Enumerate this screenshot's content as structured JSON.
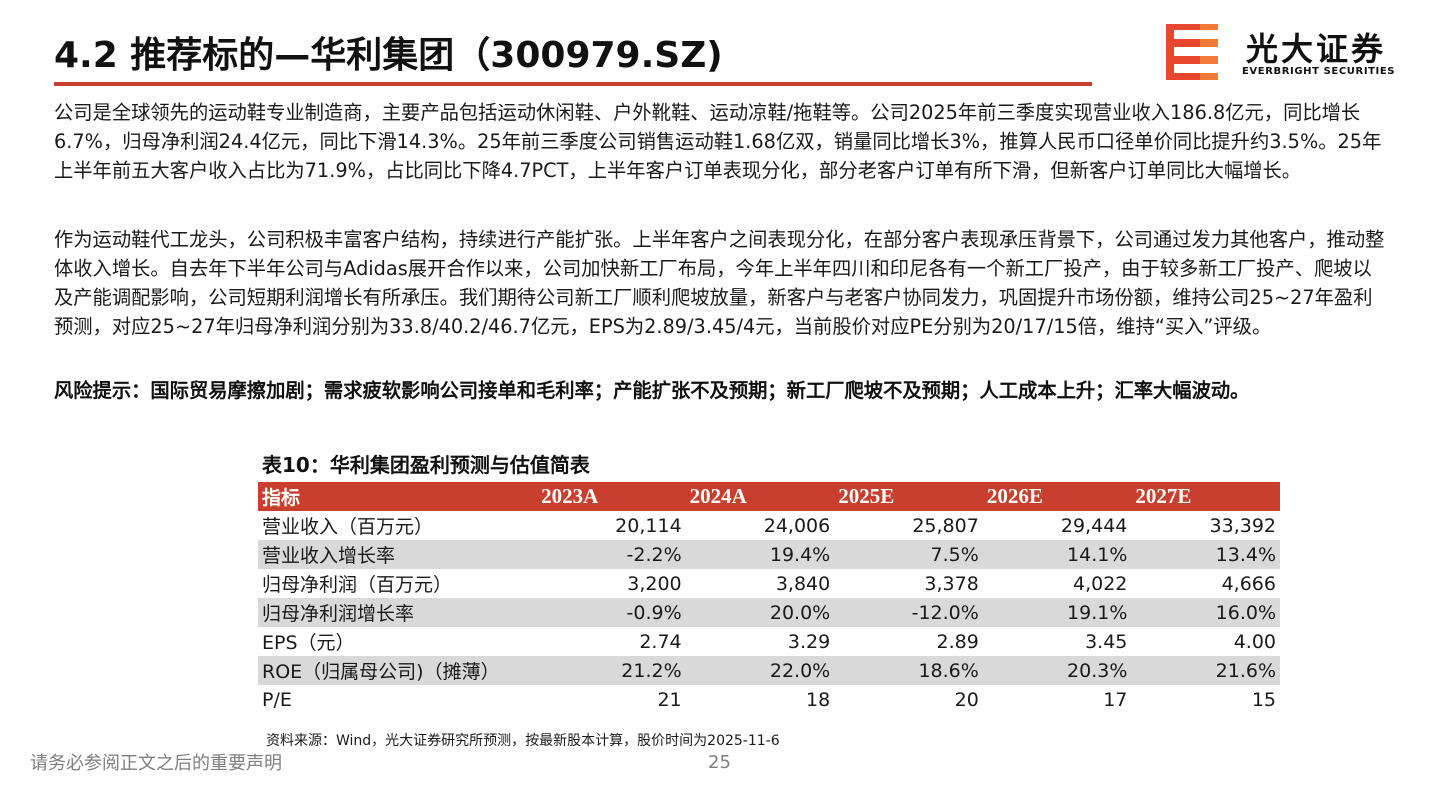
{
  "header": {
    "title": "4.2 推荐标的—华利集团（300979.SZ)",
    "logo_cn": "光大证券",
    "logo_en": "EVERBRIGHT SECURITIES",
    "accent_color": "#c8402d"
  },
  "body": {
    "para1": "公司是全球领先的运动鞋专业制造商，主要产品包括运动休闲鞋、户外靴鞋、运动凉鞋/拖鞋等。公司2025年前三季度实现营业收入186.8亿元，同比增长6.7%，归母净利润24.4亿元，同比下滑14.3%。25年前三季度公司销售运动鞋1.68亿双，销量同比增长3%，推算人民币口径单价同比提升约3.5%。25年上半年前五大客户收入占比为71.9%，占比同比下降4.7PCT，上半年客户订单表现分化，部分老客户订单有所下滑，但新客户订单同比大幅增长。",
    "para2": "作为运动鞋代工龙头，公司积极丰富客户结构，持续进行产能扩张。上半年客户之间表现分化，在部分客户表现承压背景下，公司通过发力其他客户，推动整体收入增长。自去年下半年公司与Adidas展开合作以来，公司加快新工厂布局，今年上半年四川和印尼各有一个新工厂投产，由于较多新工厂投产、爬坡以及产能调配影响，公司短期利润增长有所承压。我们期待公司新工厂顺利爬坡放量，新客户与老客户协同发力，巩固提升市场份额，维持公司25~27年盈利预测，对应25~27年归母净利润分别为33.8/40.2/46.7亿元，EPS为2.89/3.45/4元，当前股价对应PE分别为20/17/15倍，维持“买入”评级。",
    "risk": "风险提示：国际贸易摩擦加剧；需求疲软影响公司接单和毛利率；产能扩张不及预期；新工厂爬坡不及预期；人工成本上升；汇率大幅波动。"
  },
  "table": {
    "caption": "表10：华利集团盈利预测与估值简表",
    "headers": [
      "指标",
      "2023A",
      "2024A",
      "2025E",
      "2026E",
      "2027E"
    ],
    "rows": [
      [
        "营业收入（百万元）",
        "20,114",
        "24,006",
        "25,807",
        "29,444",
        "33,392"
      ],
      [
        "营业收入增长率",
        "-2.2%",
        "19.4%",
        "7.5%",
        "14.1%",
        "13.4%"
      ],
      [
        "归母净利润（百万元）",
        "3,200",
        "3,840",
        "3,378",
        "4,022",
        "4,666"
      ],
      [
        "归母净利润增长率",
        "-0.9%",
        "20.0%",
        "-12.0%",
        "19.1%",
        "16.0%"
      ],
      [
        "EPS（元）",
        "2.74",
        "3.29",
        "2.89",
        "3.45",
        "4.00"
      ],
      [
        "ROE（归属母公司)（摊薄）",
        "21.2%",
        "22.0%",
        "18.6%",
        "20.3%",
        "21.6%"
      ],
      [
        "P/E",
        "21",
        "18",
        "20",
        "17",
        "15"
      ]
    ],
    "source": "资料来源：Wind，光大证券研究所预测，按最新股本计算，股价时间为2025-11-6"
  },
  "footer": {
    "disclaimer": "请务必参阅正文之后的重要声明",
    "page_number": "25"
  }
}
